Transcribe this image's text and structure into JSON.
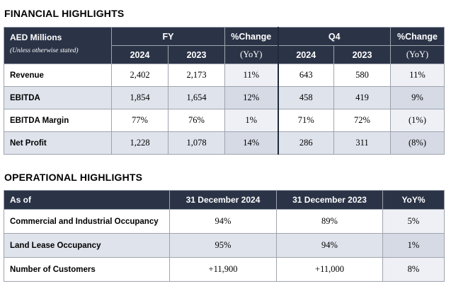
{
  "financial": {
    "title": "FINANCIAL HIGHLIGHTS",
    "header": {
      "label": "AED Millions",
      "note": "(Unless otherwise stated)",
      "fy": "FY",
      "q4": "Q4",
      "pct_change": "%Change",
      "yoy": "(YoY)",
      "y2024": "2024",
      "y2023": "2023"
    },
    "rows": [
      {
        "label": "Revenue",
        "fy2024": "2,402",
        "fy2023": "2,173",
        "fy_change": "11%",
        "q42024": "643",
        "q42023": "580",
        "q4_change": "11%"
      },
      {
        "label": "EBITDA",
        "fy2024": "1,854",
        "fy2023": "1,654",
        "fy_change": "12%",
        "q42024": "458",
        "q42023": "419",
        "q4_change": "9%"
      },
      {
        "label": "EBITDA Margin",
        "fy2024": "77%",
        "fy2023": "76%",
        "fy_change": "1%",
        "q42024": "71%",
        "q42023": "72%",
        "q4_change": "(1%)"
      },
      {
        "label": "Net Profit",
        "fy2024": "1,228",
        "fy2023": "1,078",
        "fy_change": "14%",
        "q42024": "286",
        "q42023": "311",
        "q4_change": "(8%)"
      }
    ]
  },
  "operational": {
    "title": "OPERATIONAL HIGHLIGHTS",
    "header": {
      "as_of": "As of",
      "col1": "31 December 2024",
      "col2": "31 December 2023",
      "col3": "YoY%"
    },
    "rows": [
      {
        "label": "Commercial and Industrial Occupancy",
        "v2024": "94%",
        "v2023": "89%",
        "yoy": "5%"
      },
      {
        "label": "Land Lease Occupancy",
        "v2024": "95%",
        "v2023": "94%",
        "yoy": "1%"
      },
      {
        "label": "Number of Customers",
        "v2024": "+11,900",
        "v2023": "+11,000",
        "yoy": "8%"
      }
    ]
  }
}
